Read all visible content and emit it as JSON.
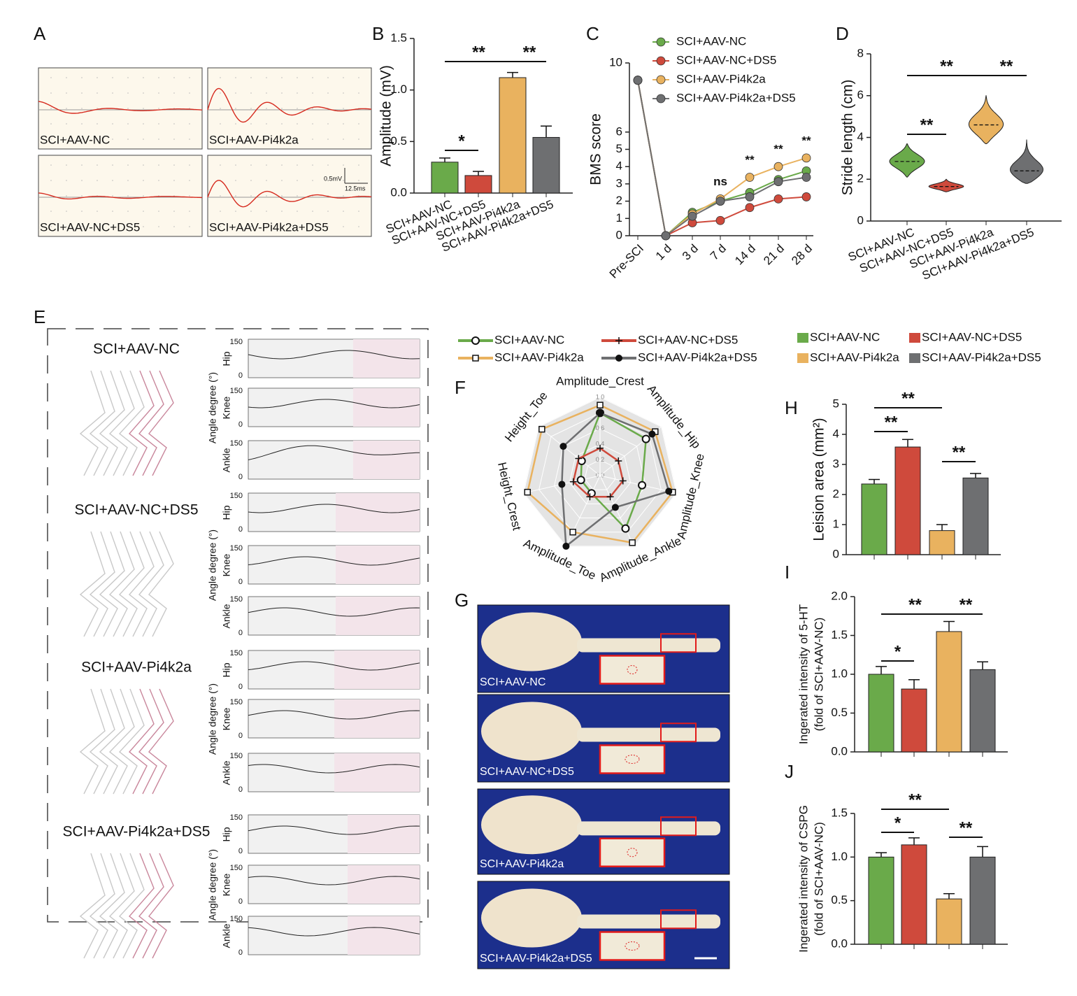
{
  "figure": {
    "A": {
      "panel": "A",
      "traces": [
        "SCI+AAV-NC",
        "SCI+AAV-Pi4k2a",
        "SCI+AAV-NC+DS5",
        "SCI+AAV-Pi4k2a+DS5"
      ],
      "scale": [
        "0.5mV",
        "12.5ms"
      ]
    },
    "E": {
      "panel": "E",
      "groups": [
        "SCI+AAV-NC",
        "SCI+AAV-NC+DS5",
        "SCI+AAV-Pi4k2a",
        "SCI+AAV-Pi4k2a+DS5"
      ],
      "joints": [
        "Hip",
        "Knee",
        "Ankle"
      ],
      "ylabel": "Angle degree (°)",
      "ticks": [
        "150",
        "0"
      ]
    },
    "G": {
      "panel": "G",
      "samples": [
        "SCI+AAV-NC",
        "SCI+AAV-NC+DS5",
        "SCI+AAV-Pi4k2a",
        "SCI+AAV-Pi4k2a+DS5"
      ]
    }
  },
  "chart_data": [
    {
      "type": "bar",
      "panel": "B",
      "ylabel": "Amplitude (mV)",
      "categories": [
        "SCI+AAV-NC",
        "SCI+AAV-NC+DS5",
        "SCI+AAV-Pi4k2a",
        "SCI+AAV-Pi4k2a+DS5"
      ],
      "values": [
        0.3,
        0.17,
        1.12,
        0.54
      ],
      "errors": [
        0.04,
        0.04,
        0.05,
        0.11
      ],
      "colors": [
        "#6aaa4a",
        "#cf4a3c",
        "#e9b25f",
        "#6e6f71"
      ],
      "ylim": [
        0,
        1.5
      ],
      "yticks": [
        {
          "value": 0,
          "label": "0.0"
        },
        0.5,
        {
          "value": 1,
          "label": "1.0"
        },
        1.5
      ],
      "annotations": [
        "*",
        "**",
        "**"
      ]
    },
    {
      "type": "line",
      "panel": "C",
      "ylabel": "BMS score",
      "categories": [
        "Pre-SCI",
        "1 d",
        "3 d",
        "7 d",
        "14 d",
        "21 d",
        "28 d"
      ],
      "series": [
        {
          "name": "SCI+AAV-NC",
          "color": "#6aaa4a",
          "values": [
            9.0,
            0,
            1.35,
            2.0,
            2.5,
            3.25,
            3.75
          ]
        },
        {
          "name": "SCI+AAV-NC+DS5",
          "color": "#cf4a3c",
          "values": [
            9.0,
            0,
            0.75,
            0.88,
            1.63,
            2.13,
            2.25
          ]
        },
        {
          "name": "SCI+AAV-Pi4k2a",
          "color": "#e9b25f",
          "values": [
            9.0,
            0,
            1.25,
            2.13,
            3.38,
            4.0,
            4.5
          ]
        },
        {
          "name": "SCI+AAV-Pi4k2a+DS5",
          "color": "#6e6f71",
          "values": [
            9.0,
            0,
            1.13,
            2.0,
            2.25,
            3.13,
            3.38
          ]
        }
      ],
      "ylim": [
        0,
        10
      ],
      "yticks": [
        0,
        1,
        2,
        3,
        4,
        5,
        6,
        10
      ],
      "annotations": [
        "ns",
        "**",
        "**",
        "**"
      ]
    },
    {
      "type": "violin",
      "panel": "D",
      "ylabel": "Stride length (cm)",
      "categories": [
        "SCI+AAV-NC",
        "SCI+AAV-NC+DS5",
        "SCI+AAV-Pi4k2a",
        "SCI+AAV-Pi4k2a+DS5"
      ],
      "min": [
        2.1,
        1.4,
        3.7,
        1.8
      ],
      "median": [
        2.85,
        1.65,
        4.6,
        2.4
      ],
      "max": [
        3.7,
        2.0,
        6.0,
        3.9
      ],
      "colors": [
        "#6aaa4a",
        "#cf4a3c",
        "#e9b25f",
        "#6e6f71"
      ],
      "ylim": [
        0,
        8
      ],
      "yticks": [
        0,
        2,
        4,
        6,
        8
      ],
      "annotations": [
        "**",
        "**",
        "**"
      ]
    },
    {
      "type": "radar",
      "panel": "F",
      "axes": [
        "Amplitude_Crest",
        "Amplitude_Hip",
        "Amplitude_Knee",
        "Amplitude_Ankle",
        "Amplitude_Toe",
        "Height_Crest",
        "Height_Toe"
      ],
      "series": [
        {
          "name": "SCI+AAV-NC",
          "color": "#6aaa4a",
          "marker": "circle-open",
          "values": [
            0.8,
            0.75,
            0.55,
            0.75,
            0.25,
            0.25,
            0.3
          ]
        },
        {
          "name": "SCI+AAV-NC+DS5",
          "color": "#cf4a3c",
          "marker": "plus",
          "values": [
            0.35,
            0.3,
            0.3,
            0.3,
            0.3,
            0.35,
            0.35
          ]
        },
        {
          "name": "SCI+AAV-Pi4k2a",
          "color": "#e9b25f",
          "marker": "square-open",
          "values": [
            0.9,
            0.9,
            0.95,
            0.95,
            0.8,
            0.95,
            0.95
          ]
        },
        {
          "name": "SCI+AAV-Pi4k2a+DS5",
          "color": "#6e6f71",
          "marker": "circle",
          "values": [
            0.8,
            0.85,
            0.9,
            0.45,
            1.0,
            0.5,
            0.6
          ]
        }
      ],
      "rlim": [
        0,
        1
      ],
      "rticks": [
        {
          "value": 0,
          "label": "0.0"
        },
        0.2,
        0.4,
        0.6,
        0.8,
        {
          "value": 1,
          "label": "1.0"
        }
      ]
    },
    {
      "type": "bar",
      "panel": "H",
      "ylabel": "Leision area (mm²)",
      "values": [
        2.35,
        3.58,
        0.8,
        2.55
      ],
      "errors": [
        0.15,
        0.25,
        0.2,
        0.15
      ],
      "colors": [
        "#6aaa4a",
        "#cf4a3c",
        "#e9b25f",
        "#6e6f71"
      ],
      "legend": [
        "SCI+AAV-NC",
        "SCI+AAV-NC+DS5",
        "SCI+AAV-Pi4k2a",
        "SCI+AAV-Pi4k2a+DS5"
      ],
      "ylim": [
        0,
        5
      ],
      "yticks": [
        0,
        1,
        2,
        3,
        4,
        5
      ],
      "annotations": [
        "**",
        "**",
        "**"
      ]
    },
    {
      "type": "bar",
      "panel": "I",
      "ylabel": [
        "Ingerated intensity of 5-HT",
        "(fold of SCI+AAV-NC)"
      ],
      "values": [
        1.0,
        0.81,
        1.55,
        1.06
      ],
      "errors": [
        0.1,
        0.12,
        0.13,
        0.1
      ],
      "colors": [
        "#6aaa4a",
        "#cf4a3c",
        "#e9b25f",
        "#6e6f71"
      ],
      "ylim": [
        0,
        2
      ],
      "yticks": [
        {
          "value": 0,
          "label": "0.0"
        },
        0.5,
        {
          "value": 1,
          "label": "1.0"
        },
        1.5,
        {
          "value": 2,
          "label": "2.0"
        }
      ],
      "annotations": [
        "*",
        "**",
        "**"
      ]
    },
    {
      "type": "bar",
      "panel": "J",
      "ylabel": [
        "Ingerated intensity of CSPG",
        "(fold of SCI+AAV-NC)"
      ],
      "values": [
        1.0,
        1.14,
        0.52,
        1.0
      ],
      "errors": [
        0.05,
        0.08,
        0.06,
        0.12
      ],
      "colors": [
        "#6aaa4a",
        "#cf4a3c",
        "#e9b25f",
        "#6e6f71"
      ],
      "ylim": [
        0,
        1.5
      ],
      "yticks": [
        {
          "value": 0,
          "label": "0.0"
        },
        0.5,
        {
          "value": 1,
          "label": "1.0"
        },
        1.5
      ],
      "annotations": [
        "*",
        "**",
        "**"
      ]
    }
  ]
}
